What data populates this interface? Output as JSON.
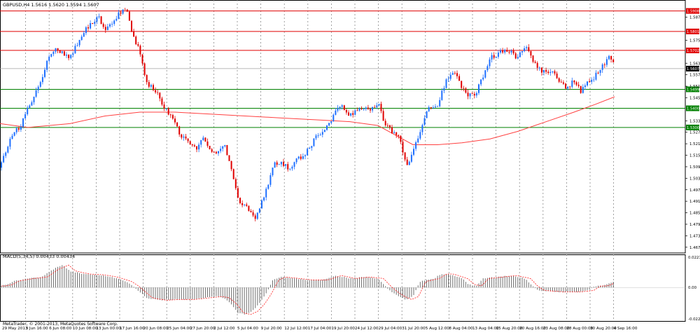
{
  "window": {
    "symbol_header": "GBPUSD,H4  1.5616 1.5620 1.5594 1.5607",
    "copyright": "MetaTrader, © 2001-2013, MetaQuotes Software Corp."
  },
  "colors": {
    "background": "#ffffff",
    "bull": "#1e6fff",
    "bear": "#e00000",
    "ma": "#ff4040",
    "resistance": "#e00000",
    "support": "#008000",
    "grid": "#8a8a8a",
    "macd_hist": "#606060",
    "macd_signal": "#ff2020"
  },
  "chart_data": [
    {
      "type": "candlestick",
      "title": "GBPUSD,H4",
      "x_tick_labels": [
        "29 May 2013",
        "3 Jun 16:00",
        "6 Jun 08:00",
        "10 Jun 08:00",
        "13 Jun 00:00",
        "17 Jun 16:00",
        "20 Jun 08:00",
        "25 Jun 04:00",
        "27 Jun 20:00",
        "2 Jul 12:00",
        "5 Jul 04:00",
        "9 Jul 20:00",
        "12 Jul 12:00",
        "17 Jul 04:00",
        "19 Jul 20:00",
        "24 Jul 12:00",
        "29 Jul 04:00",
        "31 Jul 20:00",
        "5 Aug 12:00",
        "8 Aug 04:00",
        "13 Aug 04:00",
        "15 Aug 20:00",
        "20 Aug 16:00",
        "23 Aug 08:00",
        "28 Aug 00:00",
        "30 Aug 20:00",
        "4 Sep 16:00"
      ],
      "y_tick_labels": [
        "1.5875",
        "1.5755",
        "1.5635",
        "1.5575",
        "1.5515",
        "1.5455",
        "1.5335",
        "1.5275",
        "1.5215",
        "1.5155",
        "1.5095",
        "1.5035",
        "1.4975",
        "1.4915",
        "1.4855",
        "1.4795",
        "1.4735",
        "1.4675"
      ],
      "ylim": [
        1.4645,
        1.5965
      ],
      "current_price": "1.5607",
      "horizontal_levels": [
        {
          "price": "1.5908",
          "kind": "resistance"
        },
        {
          "price": "1.5801",
          "kind": "resistance"
        },
        {
          "price": "1.5702",
          "kind": "resistance"
        },
        {
          "price": "1.5499",
          "kind": "support"
        },
        {
          "price": "1.5400",
          "kind": "support"
        },
        {
          "price": "1.5300",
          "kind": "support"
        }
      ],
      "close_path": [
        [
          0,
          1.509
        ],
        [
          10,
          1.519
        ],
        [
          20,
          1.528
        ],
        [
          30,
          1.531
        ],
        [
          40,
          1.54
        ],
        [
          50,
          1.548
        ],
        [
          60,
          1.556
        ],
        [
          70,
          1.568
        ],
        [
          80,
          1.572
        ],
        [
          90,
          1.568
        ],
        [
          100,
          1.566
        ],
        [
          110,
          1.574
        ],
        [
          120,
          1.58
        ],
        [
          130,
          1.584
        ],
        [
          140,
          1.588
        ],
        [
          150,
          1.582
        ],
        [
          160,
          1.584
        ],
        [
          170,
          1.59
        ],
        [
          180,
          1.592
        ],
        [
          185,
          1.585
        ],
        [
          190,
          1.578
        ],
        [
          200,
          1.57
        ],
        [
          210,
          1.552
        ],
        [
          220,
          1.55
        ],
        [
          230,
          1.544
        ],
        [
          240,
          1.537
        ],
        [
          250,
          1.532
        ],
        [
          260,
          1.525
        ],
        [
          270,
          1.522
        ],
        [
          280,
          1.518
        ],
        [
          290,
          1.524
        ],
        [
          300,
          1.519
        ],
        [
          310,
          1.515
        ],
        [
          320,
          1.522
        ],
        [
          330,
          1.508
        ],
        [
          340,
          1.493
        ],
        [
          345,
          1.49
        ],
        [
          350,
          1.491
        ],
        [
          360,
          1.484
        ],
        [
          365,
          1.482
        ],
        [
          370,
          1.487
        ],
        [
          380,
          1.497
        ],
        [
          390,
          1.51
        ],
        [
          400,
          1.512
        ],
        [
          410,
          1.509
        ],
        [
          420,
          1.511
        ],
        [
          430,
          1.515
        ],
        [
          440,
          1.518
        ],
        [
          450,
          1.524
        ],
        [
          460,
          1.527
        ],
        [
          470,
          1.532
        ],
        [
          480,
          1.54
        ],
        [
          490,
          1.541
        ],
        [
          500,
          1.536
        ],
        [
          510,
          1.54
        ],
        [
          520,
          1.541
        ],
        [
          530,
          1.54
        ],
        [
          540,
          1.543
        ],
        [
          550,
          1.532
        ],
        [
          560,
          1.528
        ],
        [
          570,
          1.524
        ],
        [
          580,
          1.512
        ],
        [
          585,
          1.511
        ],
        [
          590,
          1.518
        ],
        [
          600,
          1.528
        ],
        [
          610,
          1.54
        ],
        [
          620,
          1.54
        ],
        [
          625,
          1.54
        ],
        [
          630,
          1.548
        ],
        [
          640,
          1.556
        ],
        [
          650,
          1.558
        ],
        [
          660,
          1.55
        ],
        [
          670,
          1.547
        ],
        [
          680,
          1.548
        ],
        [
          690,
          1.557
        ],
        [
          700,
          1.566
        ],
        [
          710,
          1.568
        ],
        [
          720,
          1.571
        ],
        [
          730,
          1.57
        ],
        [
          740,
          1.566
        ],
        [
          750,
          1.573
        ],
        [
          760,
          1.565
        ],
        [
          770,
          1.56
        ],
        [
          780,
          1.558
        ],
        [
          790,
          1.56
        ],
        [
          800,
          1.553
        ],
        [
          810,
          1.551
        ],
        [
          820,
          1.554
        ],
        [
          830,
          1.549
        ],
        [
          840,
          1.553
        ],
        [
          850,
          1.557
        ],
        [
          860,
          1.561
        ],
        [
          870,
          1.568
        ],
        [
          878,
          1.562
        ]
      ],
      "moving_average": [
        [
          0,
          1.532
        ],
        [
          40,
          1.53
        ],
        [
          100,
          1.532
        ],
        [
          150,
          1.536
        ],
        [
          200,
          1.538
        ],
        [
          250,
          1.538
        ],
        [
          300,
          1.537
        ],
        [
          350,
          1.536
        ],
        [
          400,
          1.535
        ],
        [
          450,
          1.534
        ],
        [
          500,
          1.533
        ],
        [
          540,
          1.531
        ],
        [
          560,
          1.527
        ],
        [
          590,
          1.521
        ],
        [
          625,
          1.521
        ],
        [
          660,
          1.522
        ],
        [
          700,
          1.524
        ],
        [
          740,
          1.528
        ],
        [
          780,
          1.533
        ],
        [
          820,
          1.538
        ],
        [
          850,
          1.542
        ],
        [
          878,
          1.546
        ]
      ]
    },
    {
      "type": "bar",
      "title": "MACD(5,34,5) 0.00433 0.00434",
      "y_tick_labels": [
        "0.02211",
        "0.00",
        "-0.02237"
      ],
      "ylim": [
        -0.02237,
        0.02211
      ],
      "series": [
        {
          "name": "MACD",
          "points": [
            [
              0,
              0.001
            ],
            [
              10,
              0.002
            ],
            [
              20,
              0.0045
            ],
            [
              30,
              0.0052
            ],
            [
              40,
              0.006
            ],
            [
              60,
              0.007
            ],
            [
              75,
              0.012
            ],
            [
              90,
              0.015
            ],
            [
              100,
              0.011
            ],
            [
              120,
              0.009
            ],
            [
              140,
              0.0085
            ],
            [
              160,
              0.007
            ],
            [
              180,
              0.004
            ],
            [
              190,
              0.001
            ],
            [
              200,
              -0.003
            ],
            [
              210,
              -0.007
            ],
            [
              230,
              -0.0085
            ],
            [
              250,
              -0.008
            ],
            [
              270,
              -0.008
            ],
            [
              290,
              -0.007
            ],
            [
              310,
              -0.006
            ],
            [
              320,
              -0.007
            ],
            [
              330,
              -0.011
            ],
            [
              340,
              -0.017
            ],
            [
              350,
              -0.018
            ],
            [
              360,
              -0.016
            ],
            [
              370,
              -0.011
            ],
            [
              380,
              -0.004
            ],
            [
              390,
              0.005
            ],
            [
              400,
              0.007
            ],
            [
              420,
              0.006
            ],
            [
              440,
              0.005
            ],
            [
              460,
              0.005
            ],
            [
              480,
              0.008
            ],
            [
              500,
              0.006
            ],
            [
              520,
              0.007
            ],
            [
              540,
              0.006
            ],
            [
              550,
              0.001
            ],
            [
              560,
              -0.003
            ],
            [
              570,
              -0.006
            ],
            [
              580,
              -0.008
            ],
            [
              590,
              -0.006
            ],
            [
              600,
              0.004
            ],
            [
              610,
              0.005
            ],
            [
              620,
              0.006
            ],
            [
              630,
              0.009
            ],
            [
              640,
              0.009
            ],
            [
              660,
              0.006
            ],
            [
              670,
              0.002
            ],
            [
              680,
              0.001
            ],
            [
              690,
              0.006
            ],
            [
              710,
              0.007
            ],
            [
              730,
              0.008
            ],
            [
              750,
              0.006
            ],
            [
              760,
              0.001
            ],
            [
              770,
              -0.002
            ],
            [
              800,
              -0.003
            ],
            [
              820,
              -0.003
            ],
            [
              840,
              -0.002
            ],
            [
              850,
              0.001
            ],
            [
              860,
              0.001
            ],
            [
              870,
              0.003
            ],
            [
              878,
              0.0043
            ]
          ]
        }
      ]
    }
  ]
}
